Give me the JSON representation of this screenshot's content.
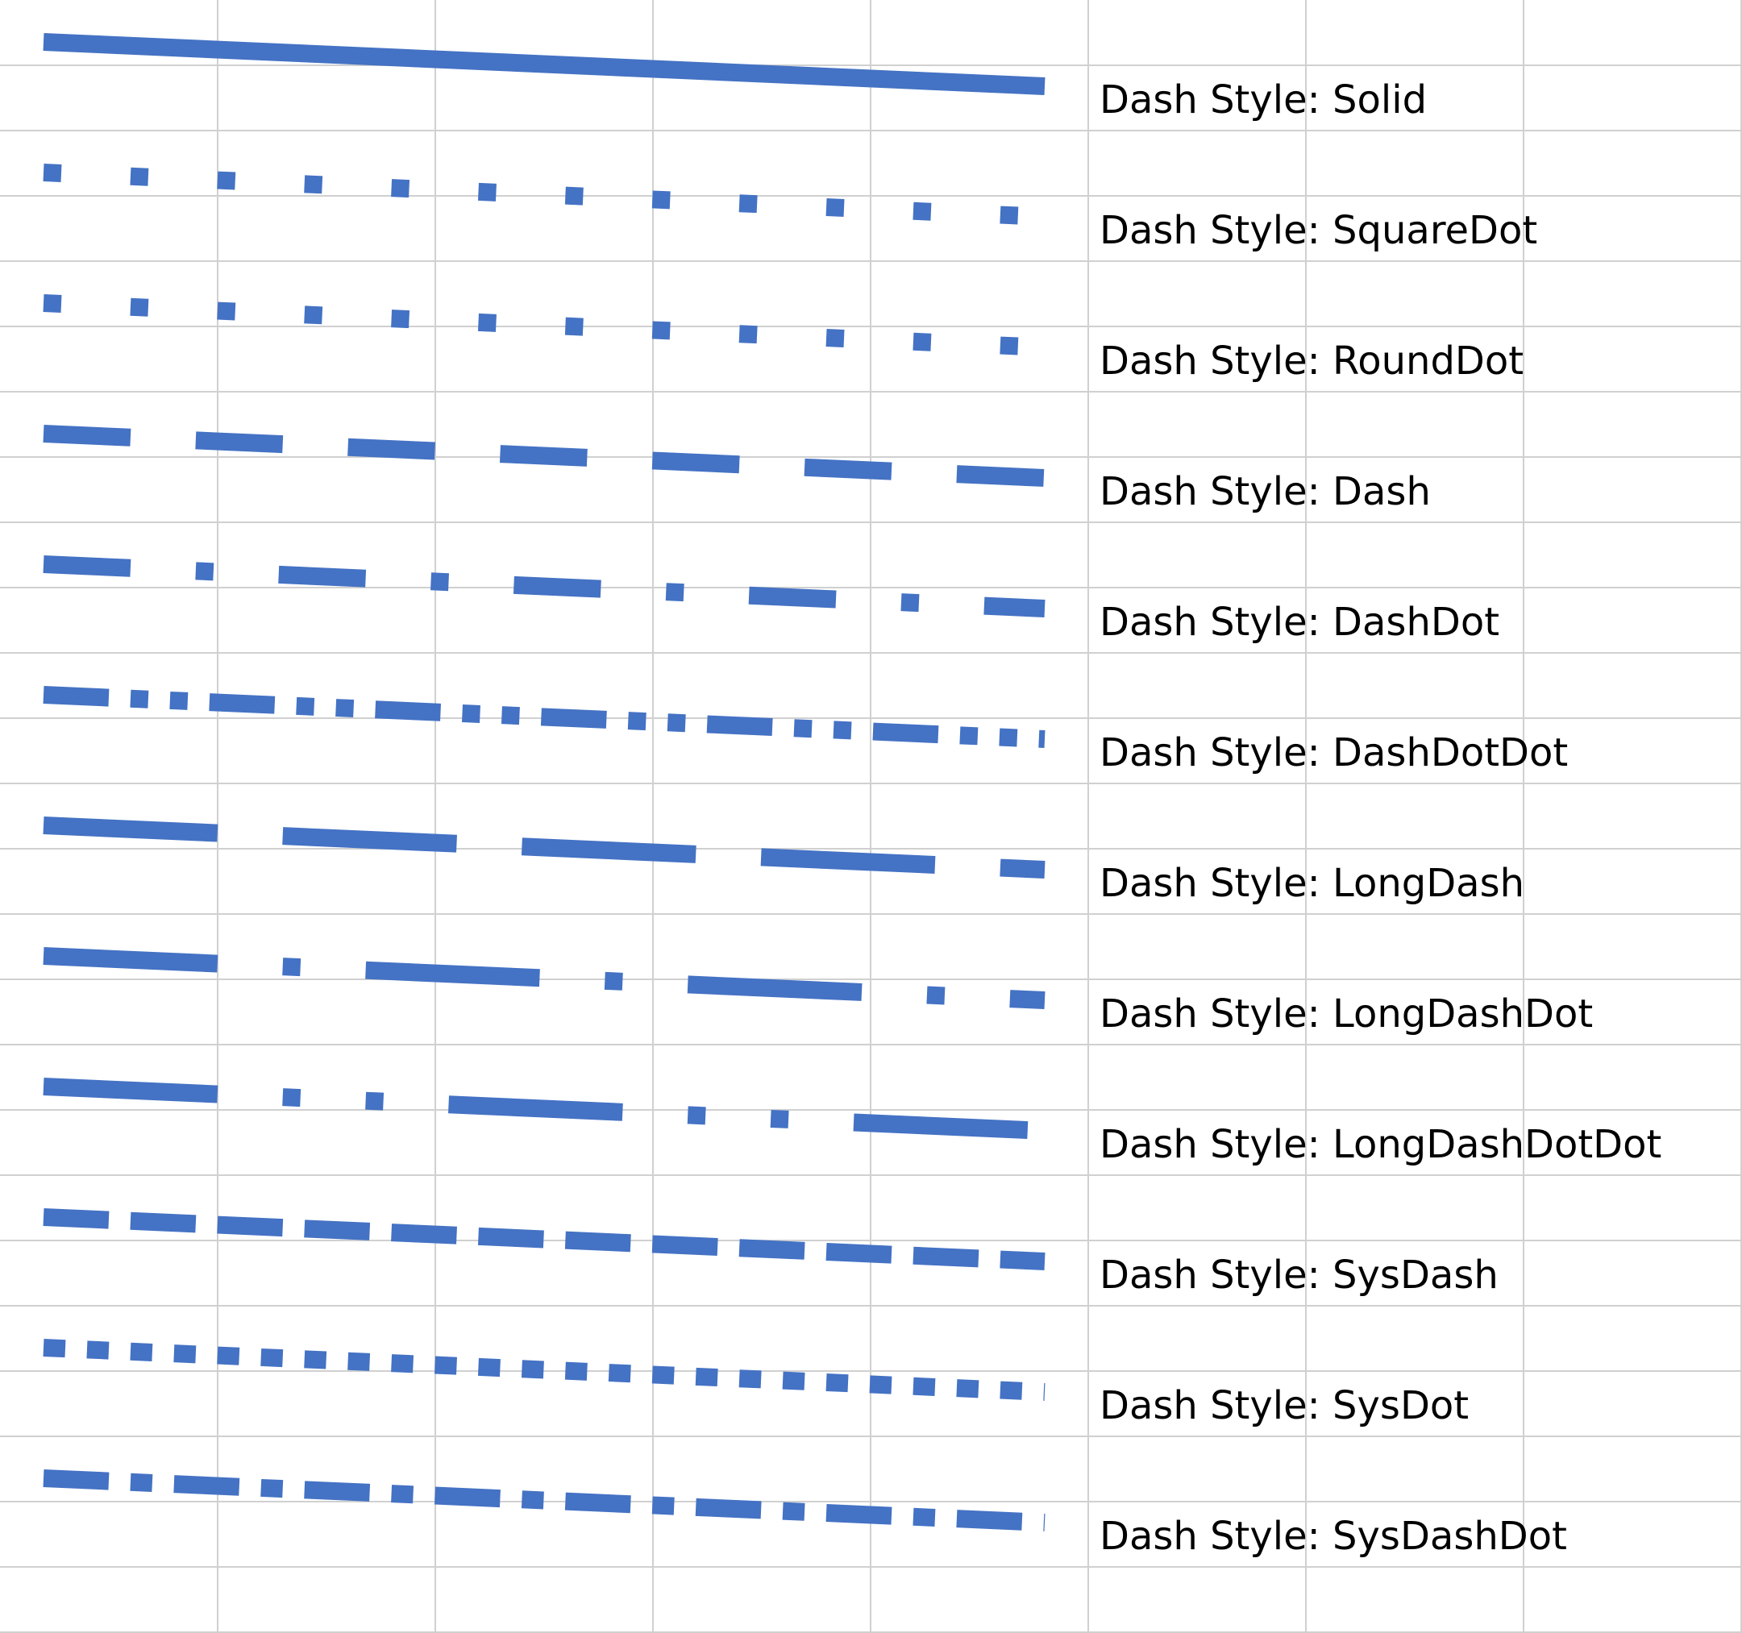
{
  "sheet": {
    "line_color": "#4472C4",
    "grid_color": "#D0D0D0",
    "columns": 8,
    "rows": 25
  },
  "styles": [
    {
      "name": "Solid",
      "label": "Dash Style: Solid"
    },
    {
      "name": "SquareDot",
      "label": "Dash Style: SquareDot"
    },
    {
      "name": "RoundDot",
      "label": "Dash Style: RoundDot"
    },
    {
      "name": "Dash",
      "label": "Dash Style: Dash"
    },
    {
      "name": "DashDot",
      "label": "Dash Style: DashDot"
    },
    {
      "name": "DashDotDot",
      "label": "Dash Style: DashDotDot"
    },
    {
      "name": "LongDash",
      "label": "Dash Style: LongDash"
    },
    {
      "name": "LongDashDot",
      "label": "Dash Style: LongDashDot"
    },
    {
      "name": "LongDashDotDot",
      "label": "Dash Style: LongDashDotDot"
    },
    {
      "name": "SysDash",
      "label": "Dash Style: SysDash"
    },
    {
      "name": "SysDot",
      "label": "Dash Style: SysDot"
    },
    {
      "name": "SysDashDot",
      "label": "Dash Style: SysDashDot"
    }
  ]
}
